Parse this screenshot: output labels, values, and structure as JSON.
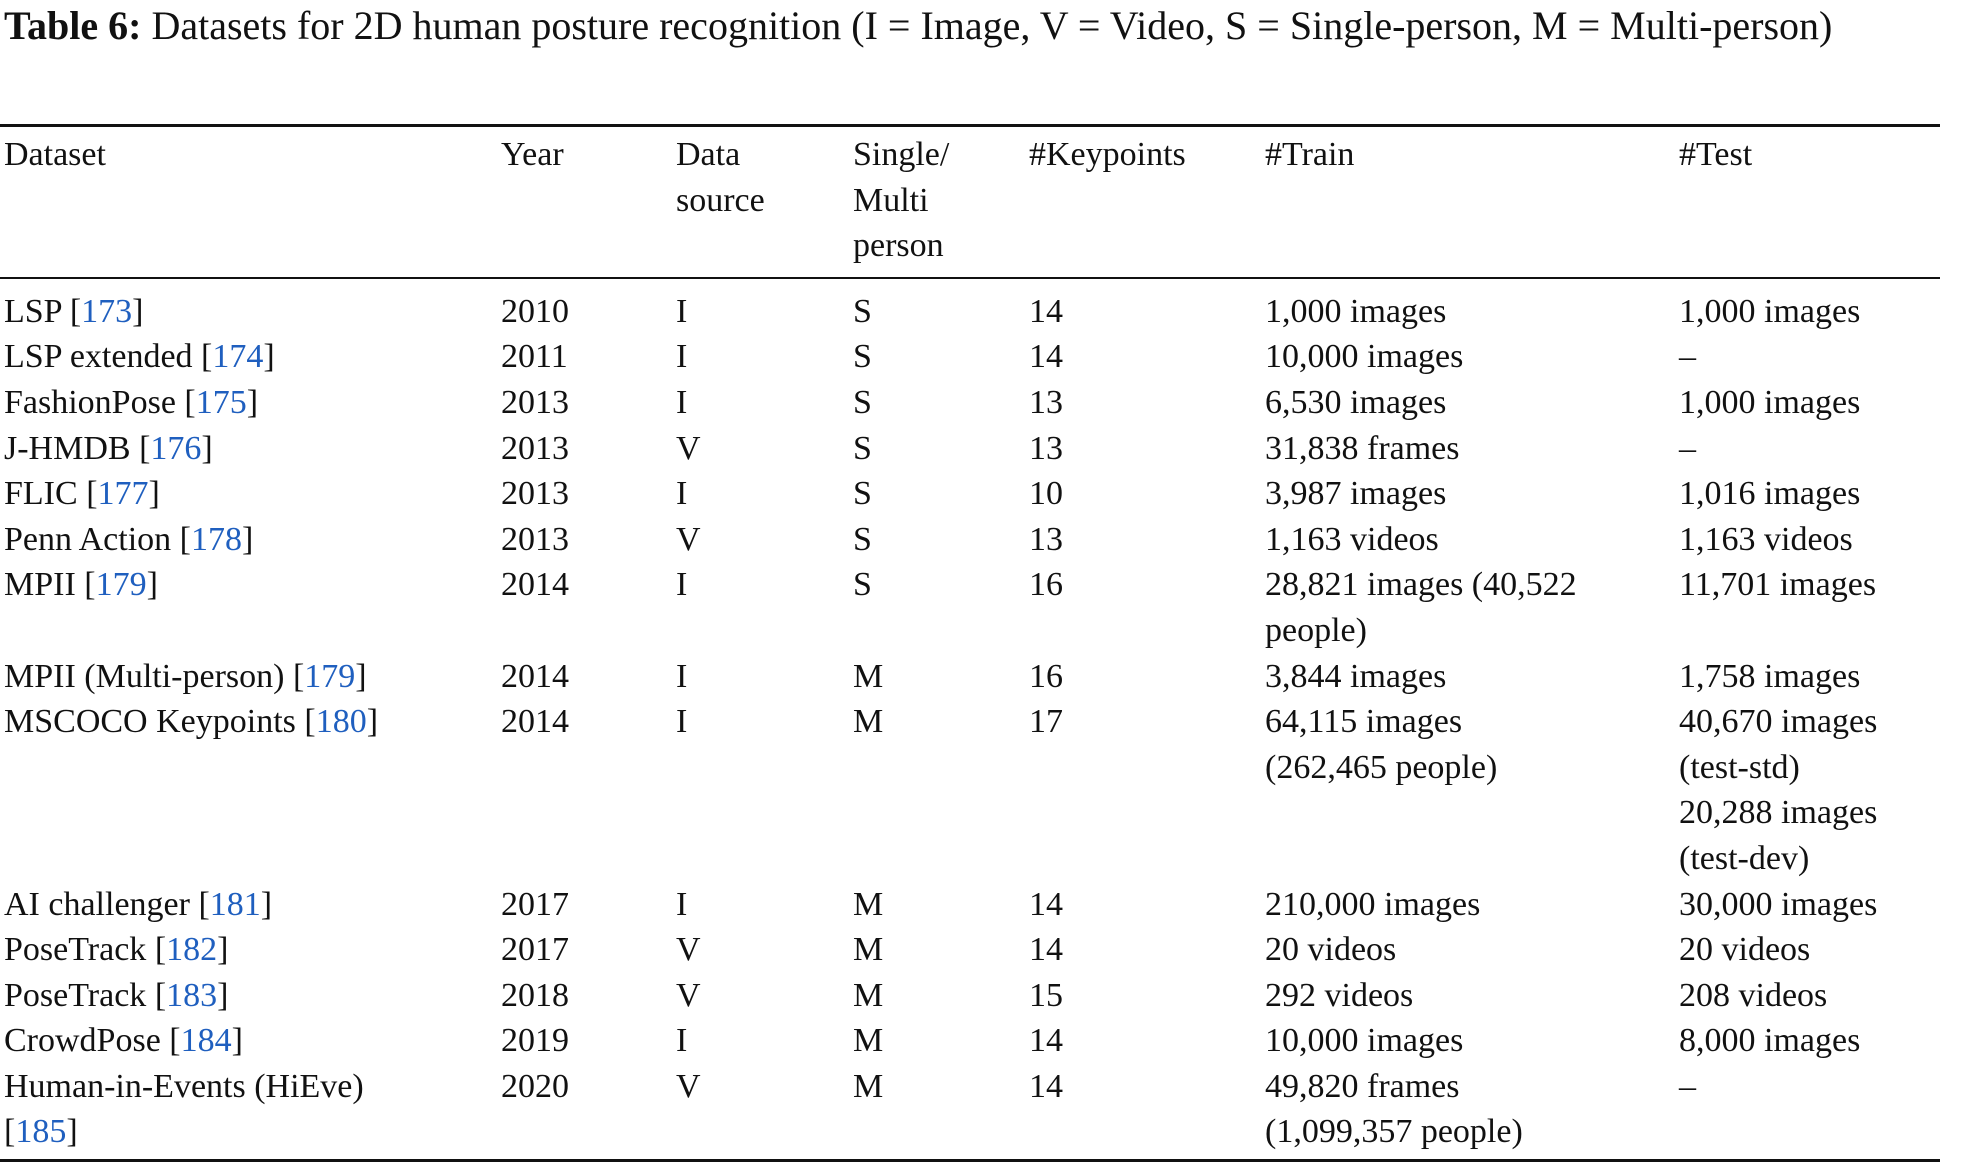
{
  "caption": {
    "label": "Table 6:",
    "text": " Datasets for 2D human posture recognition (I = Image, V = Video, S = Single-person, M = Multi-person)"
  },
  "table": {
    "headers": [
      [
        "Dataset"
      ],
      [
        "Year"
      ],
      [
        "Data",
        "source"
      ],
      [
        "Single/",
        "Multi",
        "person"
      ],
      [
        "#Keypoints"
      ],
      [
        "#Train"
      ],
      [
        "#Test"
      ]
    ],
    "rows": [
      {
        "name": "LSP",
        "ref": "173",
        "year": "2010",
        "source": "I",
        "person": "S",
        "keypoints": "14",
        "train": [
          "1,000 images"
        ],
        "test": [
          "1,000 images"
        ]
      },
      {
        "name": "LSP extended",
        "ref": "174",
        "year": "2011",
        "source": "I",
        "person": "S",
        "keypoints": "14",
        "train": [
          "10,000 images"
        ],
        "test": [
          "–"
        ]
      },
      {
        "name": "FashionPose",
        "ref": "175",
        "year": "2013",
        "source": "I",
        "person": "S",
        "keypoints": "13",
        "train": [
          "6,530 images"
        ],
        "test": [
          "1,000 images"
        ]
      },
      {
        "name": "J-HMDB",
        "ref": "176",
        "year": "2013",
        "source": "V",
        "person": "S",
        "keypoints": "13",
        "train": [
          "31,838 frames"
        ],
        "test": [
          "–"
        ]
      },
      {
        "name": "FLIC",
        "ref": "177",
        "year": "2013",
        "source": "I",
        "person": "S",
        "keypoints": "10",
        "train": [
          "3,987 images"
        ],
        "test": [
          "1,016 images"
        ]
      },
      {
        "name": "Penn Action",
        "ref": "178",
        "year": "2013",
        "source": "V",
        "person": "S",
        "keypoints": "13",
        "train": [
          "1,163 videos"
        ],
        "test": [
          "1,163 videos"
        ]
      },
      {
        "name": "MPII",
        "ref": "179",
        "year": "2014",
        "source": "I",
        "person": "S",
        "keypoints": "16",
        "train": [
          "28,821 images (40,522",
          "people)"
        ],
        "test": [
          "11,701 images"
        ]
      },
      {
        "name": "MPII (Multi-person)",
        "ref": "179",
        "year": "2014",
        "source": "I",
        "person": "M",
        "keypoints": "16",
        "train": [
          "3,844 images"
        ],
        "test": [
          "1,758 images"
        ]
      },
      {
        "name": "MSCOCO Keypoints",
        "ref": "180",
        "year": "2014",
        "source": "I",
        "person": "M",
        "keypoints": "17",
        "train": [
          "64,115 images",
          "(262,465 people)"
        ],
        "test": [
          "40,670 images",
          "(test-std)",
          "20,288 images",
          "(test-dev)"
        ]
      },
      {
        "name": "AI challenger",
        "ref": "181",
        "year": "2017",
        "source": "I",
        "person": "M",
        "keypoints": "14",
        "train": [
          "210,000 images"
        ],
        "test": [
          "30,000 images"
        ]
      },
      {
        "name": "PoseTrack",
        "ref": "182",
        "year": "2017",
        "source": "V",
        "person": "M",
        "keypoints": "14",
        "train": [
          "20 videos"
        ],
        "test": [
          "20 videos"
        ]
      },
      {
        "name": "PoseTrack",
        "ref": "183",
        "year": "2018",
        "source": "V",
        "person": "M",
        "keypoints": "15",
        "train": [
          "292 videos"
        ],
        "test": [
          "208 videos"
        ]
      },
      {
        "name": "CrowdPose",
        "ref": "184",
        "year": "2019",
        "source": "I",
        "person": "M",
        "keypoints": "14",
        "train": [
          "10,000 images"
        ],
        "test": [
          "8,000 images"
        ]
      },
      {
        "name": "Human-in-Events (HiEve)",
        "ref": "185",
        "ref_newline": true,
        "year": "2020",
        "source": "V",
        "person": "M",
        "keypoints": "14",
        "train": [
          "49,820 frames",
          "(1,099,357 people)"
        ],
        "test": [
          "–"
        ]
      }
    ]
  },
  "colors": {
    "link": "#1f5fbf",
    "text": "#111111"
  }
}
